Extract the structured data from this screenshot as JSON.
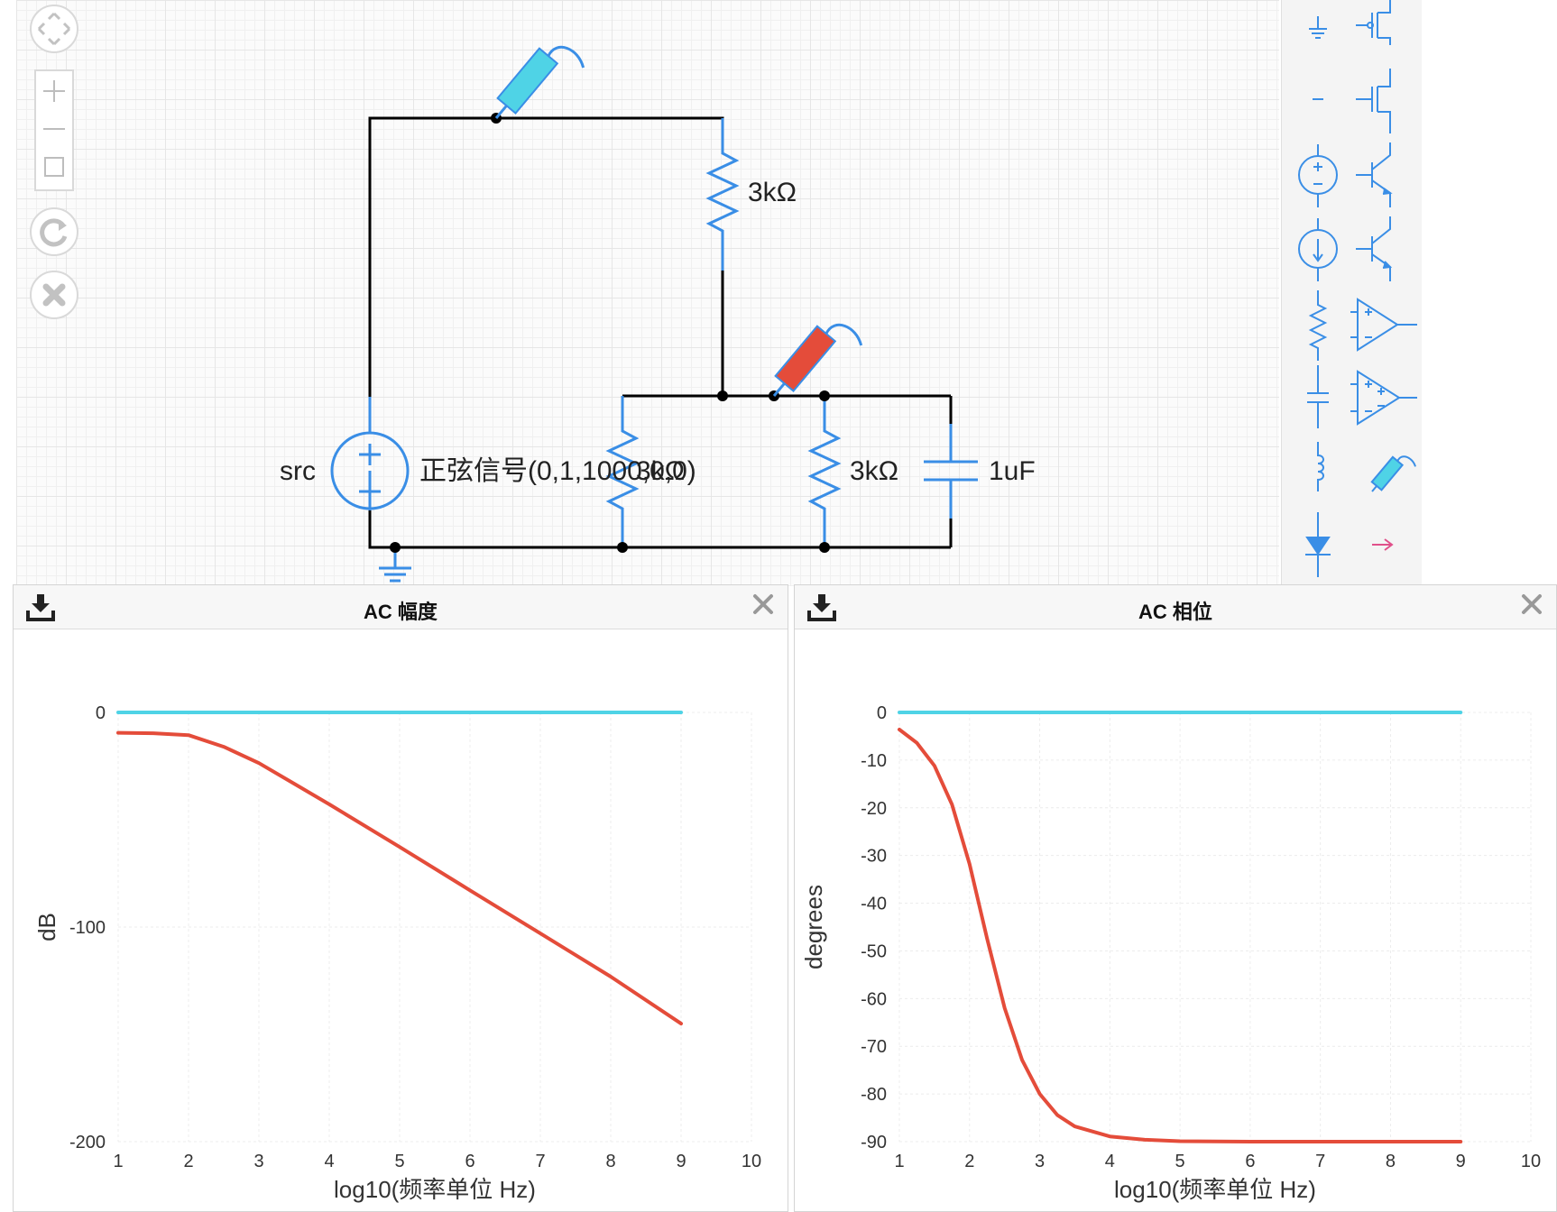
{
  "circuit": {
    "source_name": "src",
    "source_label": "正弦信号(0,1,1000,0,0)",
    "r_top_label": "3kΩ",
    "r_left_label": "3kΩ",
    "r_right_label": "3kΩ",
    "cap_label": "1uF"
  },
  "toolbar": {
    "icons": [
      "fit-view-icon",
      "zoom-in-icon",
      "zoom-out-icon",
      "frame-icon",
      "redo-icon",
      "close-icon"
    ]
  },
  "palette": {
    "items": [
      "ground",
      "nmos",
      "wire",
      "pmos",
      "voltage-source",
      "npn",
      "current-source",
      "pnp",
      "resistor",
      "opamp",
      "capacitor",
      "opamp-alt",
      "inductor",
      "probe",
      "diode",
      "arrow"
    ]
  },
  "colors": {
    "accent": "#3a8ee6",
    "probe_cyan": "#4fd3e6",
    "probe_red": "#e44c3a",
    "wire": "#000000"
  },
  "panels": {
    "magnitude": {
      "title": "AC 幅度"
    },
    "phase": {
      "title": "AC 相位"
    }
  },
  "chart_data": [
    {
      "type": "line",
      "title": "AC 幅度",
      "xlabel": "log10(频率单位 Hz)",
      "ylabel": "dB",
      "xlim": [
        1,
        10
      ],
      "ylim": [
        -200,
        0
      ],
      "xticks": [
        1,
        2,
        3,
        4,
        5,
        6,
        7,
        8,
        9,
        10
      ],
      "yticks": [
        0,
        -100,
        -200
      ],
      "grid": true,
      "series": [
        {
          "color": "#4fd3e6",
          "x": [
            1,
            9
          ],
          "y": [
            0,
            0
          ]
        },
        {
          "color": "#e44c3a",
          "x": [
            1,
            1.5,
            2,
            2.5,
            3,
            3.5,
            4,
            5,
            6,
            7,
            8,
            9
          ],
          "y": [
            -9.5,
            -9.7,
            -10.6,
            -16,
            -23.6,
            -33.2,
            -42.8,
            -62.7,
            -82.9,
            -103,
            -123.1,
            -145
          ]
        }
      ]
    },
    {
      "type": "line",
      "title": "AC 相位",
      "xlabel": "log10(频率单位 Hz)",
      "ylabel": "degrees",
      "xlim": [
        1,
        10
      ],
      "ylim": [
        -90,
        0
      ],
      "xticks": [
        1,
        2,
        3,
        4,
        5,
        6,
        7,
        8,
        9,
        10
      ],
      "yticks": [
        0,
        -10,
        -20,
        -30,
        -40,
        -50,
        -60,
        -70,
        -80,
        -90
      ],
      "grid": true,
      "series": [
        {
          "color": "#4fd3e6",
          "x": [
            1,
            9
          ],
          "y": [
            0,
            0
          ]
        },
        {
          "color": "#e44c3a",
          "x": [
            1,
            1.25,
            1.5,
            1.75,
            2,
            2.25,
            2.5,
            2.75,
            3,
            3.25,
            3.5,
            4,
            4.5,
            5,
            6,
            7,
            8,
            9
          ],
          "y": [
            -3.6,
            -6.4,
            -11.2,
            -19.3,
            -31.8,
            -47.4,
            -62.0,
            -72.9,
            -80.0,
            -84.4,
            -86.8,
            -88.9,
            -89.6,
            -89.9,
            -90,
            -90,
            -90,
            -90
          ]
        }
      ]
    }
  ]
}
